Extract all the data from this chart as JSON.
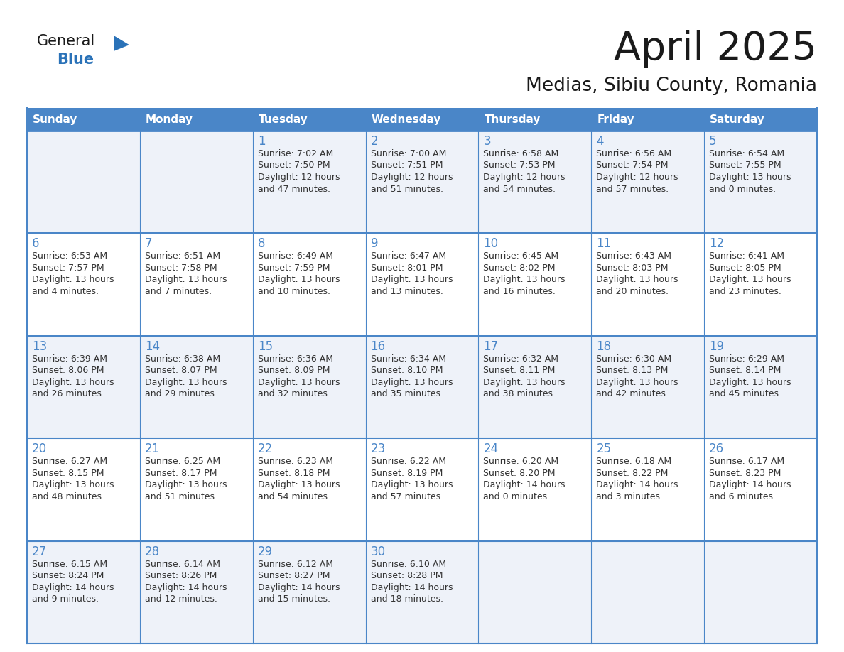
{
  "title": "April 2025",
  "subtitle": "Medias, Sibiu County, Romania",
  "header_bg": "#4a86c8",
  "header_text_color": "#ffffff",
  "cell_bg_odd": "#eef2f9",
  "cell_bg_even": "#ffffff",
  "divider_color": "#4a86c8",
  "text_color_dark": "#333333",
  "day_num_color": "#4a86c8",
  "logo_general_color": "#1a1a1a",
  "logo_blue_color": "#2a72b8",
  "logo_triangle_color": "#2a72b8",
  "days_of_week": [
    "Sunday",
    "Monday",
    "Tuesday",
    "Wednesday",
    "Thursday",
    "Friday",
    "Saturday"
  ],
  "weeks": [
    [
      {
        "day": "",
        "lines": []
      },
      {
        "day": "",
        "lines": []
      },
      {
        "day": "1",
        "lines": [
          "Sunrise: 7:02 AM",
          "Sunset: 7:50 PM",
          "Daylight: 12 hours",
          "and 47 minutes."
        ]
      },
      {
        "day": "2",
        "lines": [
          "Sunrise: 7:00 AM",
          "Sunset: 7:51 PM",
          "Daylight: 12 hours",
          "and 51 minutes."
        ]
      },
      {
        "day": "3",
        "lines": [
          "Sunrise: 6:58 AM",
          "Sunset: 7:53 PM",
          "Daylight: 12 hours",
          "and 54 minutes."
        ]
      },
      {
        "day": "4",
        "lines": [
          "Sunrise: 6:56 AM",
          "Sunset: 7:54 PM",
          "Daylight: 12 hours",
          "and 57 minutes."
        ]
      },
      {
        "day": "5",
        "lines": [
          "Sunrise: 6:54 AM",
          "Sunset: 7:55 PM",
          "Daylight: 13 hours",
          "and 0 minutes."
        ]
      }
    ],
    [
      {
        "day": "6",
        "lines": [
          "Sunrise: 6:53 AM",
          "Sunset: 7:57 PM",
          "Daylight: 13 hours",
          "and 4 minutes."
        ]
      },
      {
        "day": "7",
        "lines": [
          "Sunrise: 6:51 AM",
          "Sunset: 7:58 PM",
          "Daylight: 13 hours",
          "and 7 minutes."
        ]
      },
      {
        "day": "8",
        "lines": [
          "Sunrise: 6:49 AM",
          "Sunset: 7:59 PM",
          "Daylight: 13 hours",
          "and 10 minutes."
        ]
      },
      {
        "day": "9",
        "lines": [
          "Sunrise: 6:47 AM",
          "Sunset: 8:01 PM",
          "Daylight: 13 hours",
          "and 13 minutes."
        ]
      },
      {
        "day": "10",
        "lines": [
          "Sunrise: 6:45 AM",
          "Sunset: 8:02 PM",
          "Daylight: 13 hours",
          "and 16 minutes."
        ]
      },
      {
        "day": "11",
        "lines": [
          "Sunrise: 6:43 AM",
          "Sunset: 8:03 PM",
          "Daylight: 13 hours",
          "and 20 minutes."
        ]
      },
      {
        "day": "12",
        "lines": [
          "Sunrise: 6:41 AM",
          "Sunset: 8:05 PM",
          "Daylight: 13 hours",
          "and 23 minutes."
        ]
      }
    ],
    [
      {
        "day": "13",
        "lines": [
          "Sunrise: 6:39 AM",
          "Sunset: 8:06 PM",
          "Daylight: 13 hours",
          "and 26 minutes."
        ]
      },
      {
        "day": "14",
        "lines": [
          "Sunrise: 6:38 AM",
          "Sunset: 8:07 PM",
          "Daylight: 13 hours",
          "and 29 minutes."
        ]
      },
      {
        "day": "15",
        "lines": [
          "Sunrise: 6:36 AM",
          "Sunset: 8:09 PM",
          "Daylight: 13 hours",
          "and 32 minutes."
        ]
      },
      {
        "day": "16",
        "lines": [
          "Sunrise: 6:34 AM",
          "Sunset: 8:10 PM",
          "Daylight: 13 hours",
          "and 35 minutes."
        ]
      },
      {
        "day": "17",
        "lines": [
          "Sunrise: 6:32 AM",
          "Sunset: 8:11 PM",
          "Daylight: 13 hours",
          "and 38 minutes."
        ]
      },
      {
        "day": "18",
        "lines": [
          "Sunrise: 6:30 AM",
          "Sunset: 8:13 PM",
          "Daylight: 13 hours",
          "and 42 minutes."
        ]
      },
      {
        "day": "19",
        "lines": [
          "Sunrise: 6:29 AM",
          "Sunset: 8:14 PM",
          "Daylight: 13 hours",
          "and 45 minutes."
        ]
      }
    ],
    [
      {
        "day": "20",
        "lines": [
          "Sunrise: 6:27 AM",
          "Sunset: 8:15 PM",
          "Daylight: 13 hours",
          "and 48 minutes."
        ]
      },
      {
        "day": "21",
        "lines": [
          "Sunrise: 6:25 AM",
          "Sunset: 8:17 PM",
          "Daylight: 13 hours",
          "and 51 minutes."
        ]
      },
      {
        "day": "22",
        "lines": [
          "Sunrise: 6:23 AM",
          "Sunset: 8:18 PM",
          "Daylight: 13 hours",
          "and 54 minutes."
        ]
      },
      {
        "day": "23",
        "lines": [
          "Sunrise: 6:22 AM",
          "Sunset: 8:19 PM",
          "Daylight: 13 hours",
          "and 57 minutes."
        ]
      },
      {
        "day": "24",
        "lines": [
          "Sunrise: 6:20 AM",
          "Sunset: 8:20 PM",
          "Daylight: 14 hours",
          "and 0 minutes."
        ]
      },
      {
        "day": "25",
        "lines": [
          "Sunrise: 6:18 AM",
          "Sunset: 8:22 PM",
          "Daylight: 14 hours",
          "and 3 minutes."
        ]
      },
      {
        "day": "26",
        "lines": [
          "Sunrise: 6:17 AM",
          "Sunset: 8:23 PM",
          "Daylight: 14 hours",
          "and 6 minutes."
        ]
      }
    ],
    [
      {
        "day": "27",
        "lines": [
          "Sunrise: 6:15 AM",
          "Sunset: 8:24 PM",
          "Daylight: 14 hours",
          "and 9 minutes."
        ]
      },
      {
        "day": "28",
        "lines": [
          "Sunrise: 6:14 AM",
          "Sunset: 8:26 PM",
          "Daylight: 14 hours",
          "and 12 minutes."
        ]
      },
      {
        "day": "29",
        "lines": [
          "Sunrise: 6:12 AM",
          "Sunset: 8:27 PM",
          "Daylight: 14 hours",
          "and 15 minutes."
        ]
      },
      {
        "day": "30",
        "lines": [
          "Sunrise: 6:10 AM",
          "Sunset: 8:28 PM",
          "Daylight: 14 hours",
          "and 18 minutes."
        ]
      },
      {
        "day": "",
        "lines": []
      },
      {
        "day": "",
        "lines": []
      },
      {
        "day": "",
        "lines": []
      }
    ]
  ]
}
